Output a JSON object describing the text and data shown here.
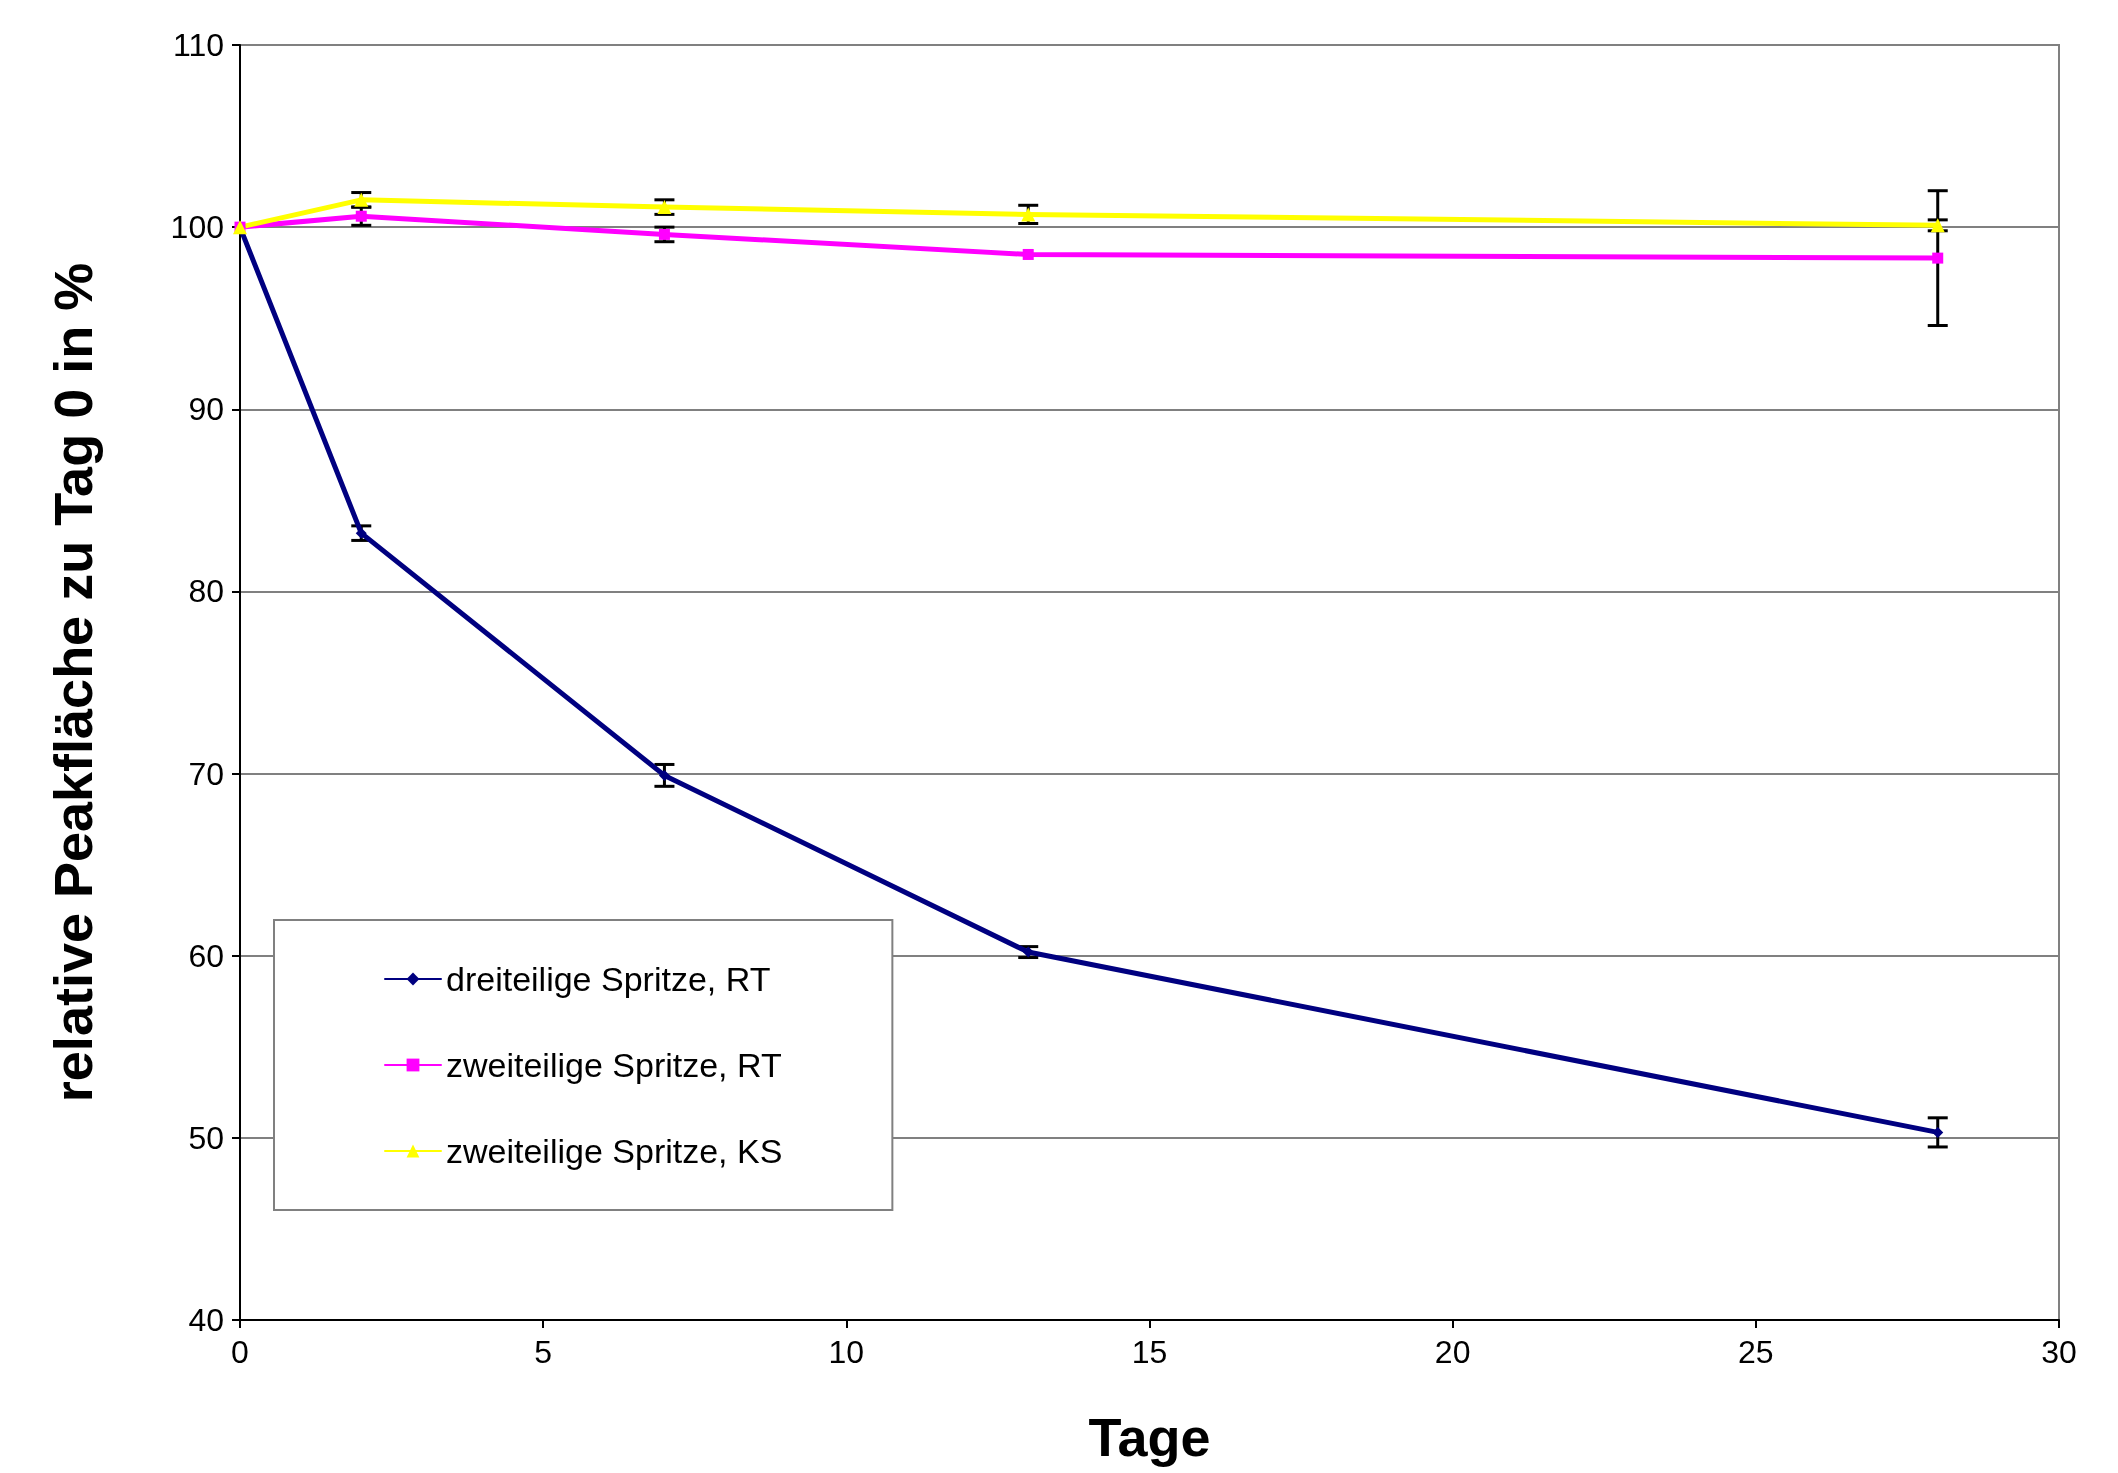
{
  "chart_data": {
    "type": "line",
    "xlabel": "Tage",
    "ylabel": "relative Peakfläche zu Tag 0 in %",
    "x": [
      0,
      2,
      7,
      13,
      28
    ],
    "series": [
      {
        "name": "dreiteilige Spritze, RT",
        "color": "#000080",
        "marker": "diamond",
        "values": [
          100,
          83.2,
          69.9,
          60.2,
          50.3
        ],
        "errors": [
          null,
          0.4,
          0.6,
          0.3,
          0.8
        ]
      },
      {
        "name": "zweiteilige Spritze, RT",
        "color": "#ff00ff",
        "marker": "square",
        "values": [
          100,
          100.6,
          99.6,
          98.5,
          98.3
        ],
        "errors": [
          null,
          0.5,
          0.4,
          null,
          3.7
        ]
      },
      {
        "name": "zweiteilige Spritze, KS",
        "color": "#ffff00",
        "marker": "triangle",
        "values": [
          100,
          101.5,
          101.1,
          100.7,
          100.1
        ],
        "errors": [
          null,
          0.4,
          0.4,
          0.5,
          0.3
        ]
      }
    ],
    "xlim": [
      0,
      30
    ],
    "xticks": [
      0,
      5,
      10,
      15,
      20,
      25,
      30
    ],
    "ylim": [
      40,
      110
    ],
    "yticks": [
      40,
      50,
      60,
      70,
      80,
      90,
      100,
      110
    ],
    "grid": "y",
    "legend": "bottom left",
    "line_style": "solid"
  }
}
